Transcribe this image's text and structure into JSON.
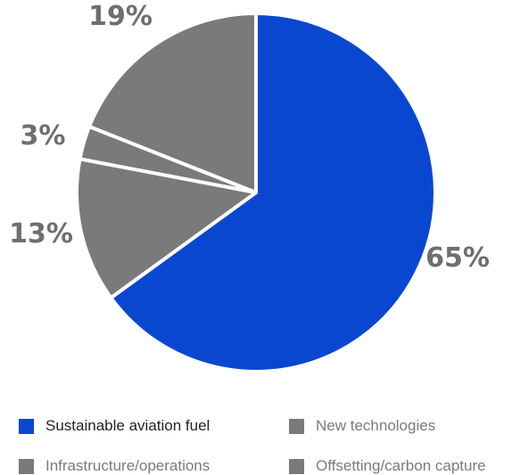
{
  "chart_data": {
    "type": "pie",
    "slices": [
      {
        "label": "Sustainable aviation fuel",
        "value": 65,
        "display": "65%",
        "color": "#0A47D1"
      },
      {
        "label": "Infrastructure/operations",
        "value": 13,
        "display": "13%",
        "color": "#7A7A7A"
      },
      {
        "label": "Offsetting/carbon capture",
        "value": 3,
        "display": "3%",
        "color": "#7A7A7A"
      },
      {
        "label": "New technologies",
        "value": 19,
        "display": "19%",
        "color": "#7A7A7A"
      }
    ],
    "start_angle_deg": 0,
    "direction": "clockwise",
    "label_color": "#6E6E6E",
    "legend": [
      {
        "label": "Sustainable aviation fuel",
        "color": "#0A47D1",
        "text_color": "#222222"
      },
      {
        "label": "New technologies",
        "color": "#7A7A7A",
        "text_color": "#7A7A7A"
      },
      {
        "label": "Infrastructure/operations",
        "color": "#7A7A7A",
        "text_color": "#7A7A7A"
      },
      {
        "label": "Offsetting/carbon capture",
        "color": "#7A7A7A",
        "text_color": "#7A7A7A"
      }
    ],
    "legend_position": "bottom"
  }
}
